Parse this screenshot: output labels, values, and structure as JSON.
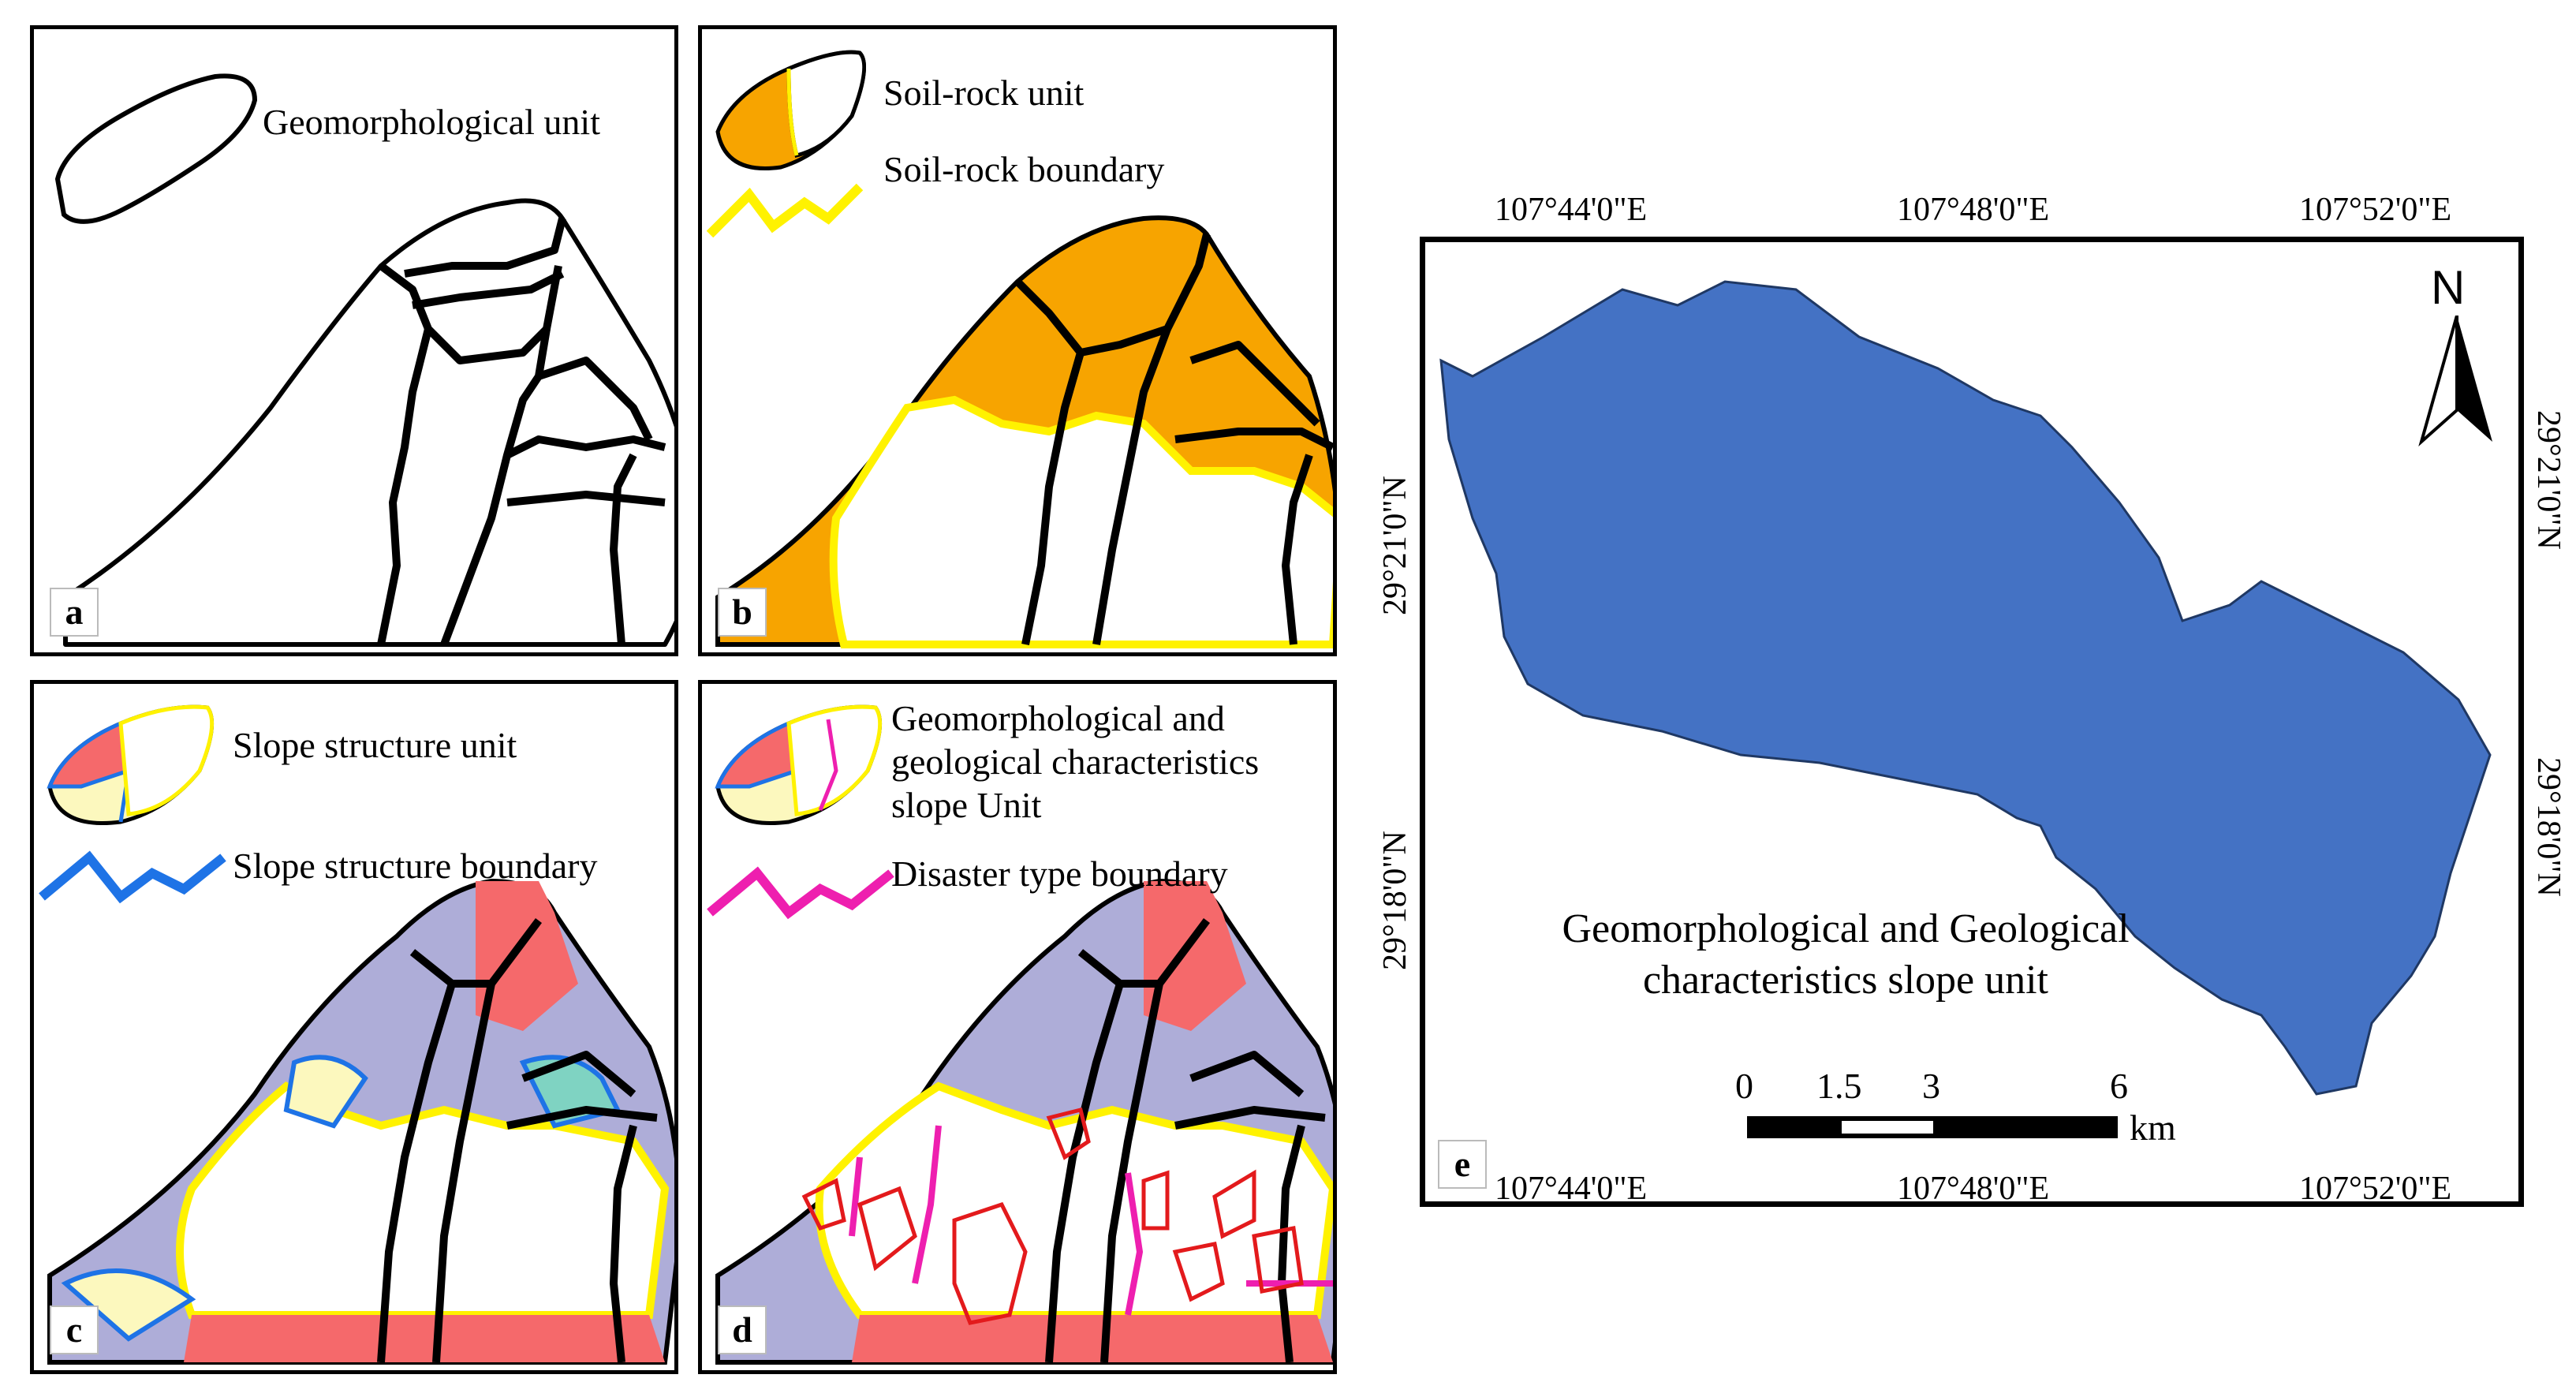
{
  "panels": {
    "a": {
      "label": "a",
      "legend": [
        "Geomorphological unit"
      ]
    },
    "b": {
      "label": "b",
      "legend": [
        "Soil-rock unit",
        "Soil-rock boundary"
      ]
    },
    "c": {
      "label": "c",
      "legend": [
        "Slope structure unit",
        "Slope structure boundary"
      ]
    },
    "d": {
      "label": "d",
      "legend": [
        "Geomorphological and",
        "geological characteristics",
        "slope Unit",
        "Disaster type boundary"
      ]
    },
    "e": {
      "label": "e",
      "title_line1": "Geomorphological and Geological",
      "title_line2": "characteristics slope unit",
      "top_coords": [
        "107°44'0\"E",
        "107°48'0\"E",
        "107°52'0\"E"
      ],
      "bottom_coords": [
        "107°44'0\"E",
        "107°48'0\"E",
        "107°52'0\"E"
      ],
      "left_coords": [
        "29°21'0\"N",
        "29°18'0\"N"
      ],
      "right_coords": [
        "29°21'0\"N",
        "29°18'0\"N"
      ],
      "north": "N",
      "scale_ticks": [
        "0",
        "1.5",
        "3",
        "6"
      ],
      "scale_unit": "km"
    }
  },
  "colors": {
    "orange": "#F7A400",
    "yellow": "#FFF200",
    "blue_line": "#1E73E6",
    "magenta": "#EE1FAF",
    "red": "#F5696B",
    "lavender": "#AEADD8",
    "pale_yellow": "#FCF8BE",
    "teal": "#7FD3C2",
    "map_blue": "#4472C4"
  }
}
